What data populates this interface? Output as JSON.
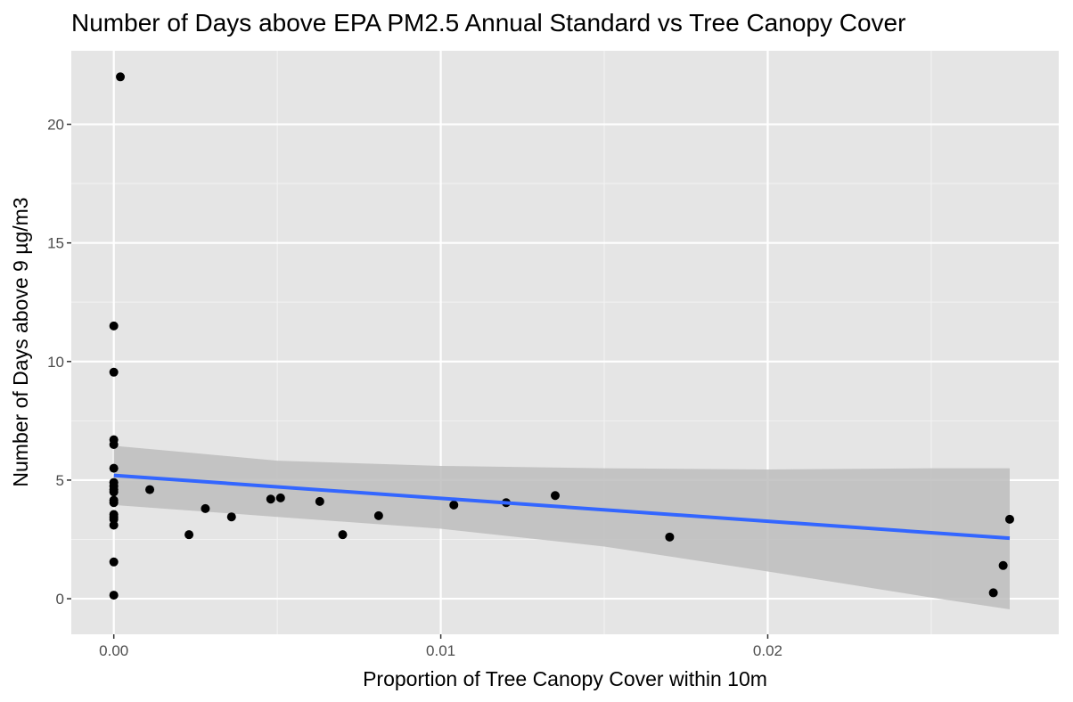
{
  "chart_data": {
    "type": "scatter",
    "title": "Number of Days above EPA PM2.5 Annual Standard vs Tree Canopy Cover",
    "xlabel": "Proportion of Tree Canopy Cover within 10m",
    "ylabel": "Number of Days above 9 µg/m3",
    "xlim": [
      -0.0013,
      0.0289
    ],
    "ylim": [
      -1.5,
      23.1
    ],
    "x_ticks": [
      {
        "value": 0.0,
        "label": "0.00"
      },
      {
        "value": 0.01,
        "label": "0.01"
      },
      {
        "value": 0.02,
        "label": "0.02"
      }
    ],
    "x_minor_ticks": [
      0.005,
      0.015,
      0.025
    ],
    "y_ticks": [
      {
        "value": 0,
        "label": "0"
      },
      {
        "value": 5,
        "label": "5"
      },
      {
        "value": 10,
        "label": "10"
      },
      {
        "value": 15,
        "label": "15"
      },
      {
        "value": 20,
        "label": "20"
      }
    ],
    "y_minor_ticks": [
      2.5,
      7.5,
      12.5,
      17.5
    ],
    "grid": true,
    "points": [
      {
        "x": 0.0002,
        "y": 22.0
      },
      {
        "x": 0.0,
        "y": 11.5
      },
      {
        "x": 0.0,
        "y": 9.55
      },
      {
        "x": 0.0,
        "y": 6.7
      },
      {
        "x": 0.0,
        "y": 6.5
      },
      {
        "x": 0.0,
        "y": 5.5
      },
      {
        "x": 0.0,
        "y": 4.9
      },
      {
        "x": 0.0,
        "y": 4.75
      },
      {
        "x": 0.0,
        "y": 4.6
      },
      {
        "x": 0.0,
        "y": 4.5
      },
      {
        "x": 0.0,
        "y": 4.15
      },
      {
        "x": 0.0,
        "y": 4.05
      },
      {
        "x": 0.0,
        "y": 3.55
      },
      {
        "x": 0.0,
        "y": 3.45
      },
      {
        "x": 0.0,
        "y": 3.35
      },
      {
        "x": 0.0,
        "y": 3.1
      },
      {
        "x": 0.0,
        "y": 1.55
      },
      {
        "x": 0.0,
        "y": 0.15
      },
      {
        "x": 0.0011,
        "y": 4.6
      },
      {
        "x": 0.0023,
        "y": 2.7
      },
      {
        "x": 0.0028,
        "y": 3.8
      },
      {
        "x": 0.0036,
        "y": 3.45
      },
      {
        "x": 0.0048,
        "y": 4.2
      },
      {
        "x": 0.0051,
        "y": 4.25
      },
      {
        "x": 0.0063,
        "y": 4.1
      },
      {
        "x": 0.007,
        "y": 2.7
      },
      {
        "x": 0.0081,
        "y": 3.5
      },
      {
        "x": 0.0104,
        "y": 3.95
      },
      {
        "x": 0.012,
        "y": 4.05
      },
      {
        "x": 0.0135,
        "y": 4.35
      },
      {
        "x": 0.017,
        "y": 2.6
      },
      {
        "x": 0.0269,
        "y": 0.25
      },
      {
        "x": 0.0272,
        "y": 1.4
      },
      {
        "x": 0.0274,
        "y": 3.35
      }
    ],
    "fit_line": {
      "x": [
        0.0,
        0.0274
      ],
      "y": [
        5.2,
        2.55
      ]
    },
    "confidence_band": [
      {
        "x": 0.0,
        "lower": 3.95,
        "upper": 6.45
      },
      {
        "x": 0.005,
        "lower": 3.45,
        "upper": 5.82
      },
      {
        "x": 0.01,
        "lower": 2.95,
        "upper": 5.6
      },
      {
        "x": 0.015,
        "lower": 2.2,
        "upper": 5.5
      },
      {
        "x": 0.02,
        "lower": 1.15,
        "upper": 5.45
      },
      {
        "x": 0.025,
        "lower": 0.05,
        "upper": 5.5
      },
      {
        "x": 0.0274,
        "lower": -0.45,
        "upper": 5.5
      }
    ],
    "colors": {
      "panel_background": "#e5e5e5",
      "grid_major": "#ffffff",
      "grid_minor": "#f2f2f2",
      "point": "#000000",
      "fit_line": "#3366ff",
      "confidence_band": "#bdbdbd",
      "tick_label": "#4d4d4d",
      "tick_mark": "#333333"
    }
  }
}
